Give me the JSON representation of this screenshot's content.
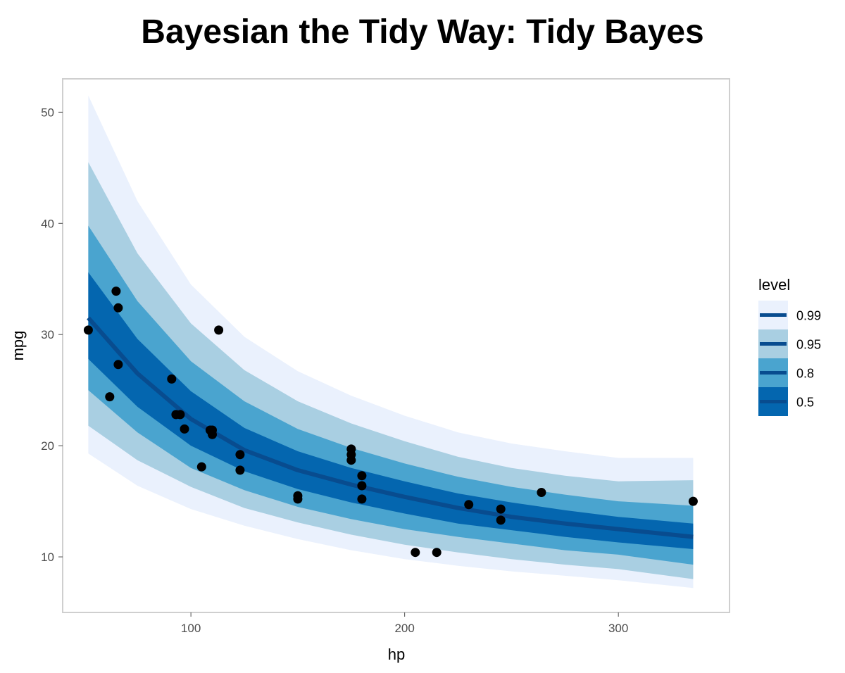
{
  "chart_data": {
    "type": "line",
    "title": "Bayesian the Tidy Way: Tidy Bayes",
    "xlabel": "hp",
    "ylabel": "mpg",
    "xlim": [
      40,
      352
    ],
    "ylim": [
      5,
      53
    ],
    "x_ticks": [
      100,
      200,
      300
    ],
    "y_ticks": [
      10,
      20,
      30,
      40,
      50
    ],
    "grid": false,
    "legend": {
      "title": "level",
      "placement": "right",
      "entries": [
        {
          "label": "0.99",
          "color": "#EAF1FD"
        },
        {
          "label": "0.95",
          "color": "#A9CFE2"
        },
        {
          "label": "0.8",
          "color": "#4AA4CF"
        },
        {
          "label": "0.5",
          "color": "#0466AF"
        }
      ],
      "line_color": "#084C8F"
    },
    "series": [
      {
        "kind": "median",
        "x": [
          52,
          75,
          100,
          125,
          150,
          175,
          200,
          225,
          250,
          275,
          300,
          335
        ],
        "y": [
          31.5,
          26.5,
          22.4,
          19.6,
          17.8,
          16.5,
          15.4,
          14.4,
          13.6,
          13.0,
          12.5,
          11.8
        ]
      },
      {
        "kind": "interval",
        "level": "0.5",
        "x": [
          52,
          75,
          100,
          125,
          150,
          175,
          200,
          225,
          250,
          275,
          300,
          335
        ],
        "lower": [
          27.8,
          23.5,
          20.0,
          17.7,
          16.1,
          14.9,
          13.9,
          13.0,
          12.4,
          11.8,
          11.3,
          10.7
        ],
        "upper": [
          35.6,
          29.6,
          24.9,
          21.6,
          19.5,
          18.0,
          16.8,
          15.7,
          14.9,
          14.2,
          13.6,
          13.0
        ]
      },
      {
        "kind": "interval",
        "level": "0.8",
        "x": [
          52,
          75,
          100,
          125,
          150,
          175,
          200,
          225,
          250,
          275,
          300,
          335
        ],
        "lower": [
          25.0,
          21.2,
          18.0,
          16.0,
          14.5,
          13.4,
          12.5,
          11.8,
          11.2,
          10.6,
          10.2,
          9.3
        ],
        "upper": [
          39.8,
          33.0,
          27.6,
          24.0,
          21.5,
          19.8,
          18.4,
          17.2,
          16.3,
          15.6,
          15.0,
          14.6
        ]
      },
      {
        "kind": "interval",
        "level": "0.95",
        "x": [
          52,
          75,
          100,
          125,
          150,
          175,
          200,
          225,
          250,
          275,
          300,
          335
        ],
        "lower": [
          21.8,
          18.7,
          16.3,
          14.4,
          13.1,
          12.0,
          11.1,
          10.4,
          9.8,
          9.3,
          8.9,
          8.0
        ],
        "upper": [
          45.5,
          37.3,
          31.0,
          26.8,
          24.0,
          22.0,
          20.4,
          19.0,
          18.0,
          17.3,
          16.8,
          16.9
        ]
      },
      {
        "kind": "interval",
        "level": "0.99",
        "x": [
          52,
          75,
          100,
          125,
          150,
          175,
          200,
          225,
          250,
          275,
          300,
          335
        ],
        "lower": [
          19.3,
          16.4,
          14.3,
          12.8,
          11.6,
          10.6,
          9.8,
          9.2,
          8.7,
          8.3,
          7.9,
          7.2
        ],
        "upper": [
          51.5,
          42.0,
          34.5,
          29.8,
          26.7,
          24.5,
          22.7,
          21.2,
          20.2,
          19.5,
          18.9,
          18.9
        ]
      },
      {
        "kind": "points",
        "x": [
          52,
          62,
          65,
          66,
          66,
          91,
          93,
          95,
          97,
          105,
          109,
          110,
          110,
          113,
          123,
          123,
          150,
          150,
          175,
          175,
          175,
          180,
          180,
          180,
          205,
          215,
          230,
          245,
          245,
          264,
          335
        ],
        "y": [
          30.4,
          24.4,
          33.9,
          32.4,
          27.3,
          26.0,
          22.8,
          22.8,
          21.5,
          18.1,
          21.4,
          21.0,
          21.4,
          30.4,
          19.2,
          17.8,
          15.5,
          15.2,
          18.7,
          19.2,
          19.7,
          16.4,
          17.3,
          15.2,
          10.4,
          10.4,
          14.7,
          13.3,
          14.3,
          15.8,
          15.0
        ]
      }
    ]
  }
}
